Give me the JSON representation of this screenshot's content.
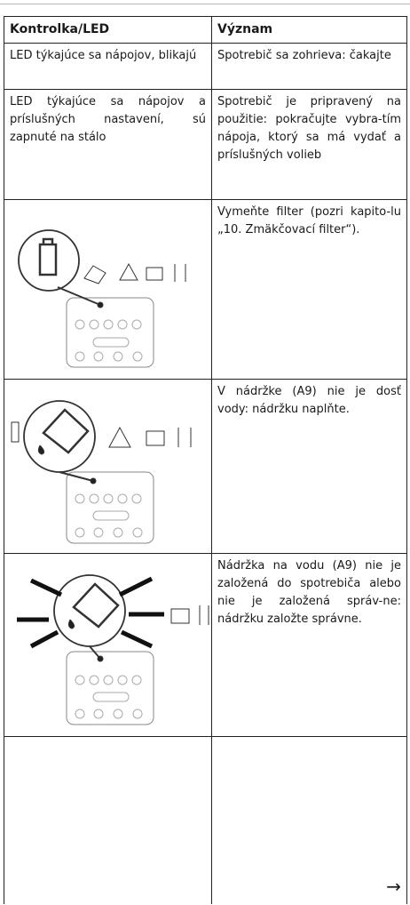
{
  "table": {
    "header": [
      "Kontrolka/LED",
      "Význam"
    ],
    "rows": [
      {
        "indicator": "LED týkajúce sa nápojov, blikajú",
        "meaning": "Spotrebič sa zohrieva: čakajte"
      },
      {
        "indicator": "LED týkajúce sa nápojov a príslušných nastavení, sú zapnuté na stálo",
        "meaning": "Spotrebič je pripravený na použitie: pokračujte vybra-tím nápoja, ktorý sa má vydať a príslušných volieb"
      },
      {
        "meaning": "Vymeňte filter (pozri kapito-lu „10. Zmäkčovací filter“)."
      },
      {
        "meaning": "V nádržke (A9) nie je dosť vody: nádržku naplňte."
      },
      {
        "meaning": "Nádržka na vodu (A9) nie je založená do spotrebiča alebo nie je založená správ-ne: nádržku založte správne."
      }
    ],
    "continued": "→"
  }
}
